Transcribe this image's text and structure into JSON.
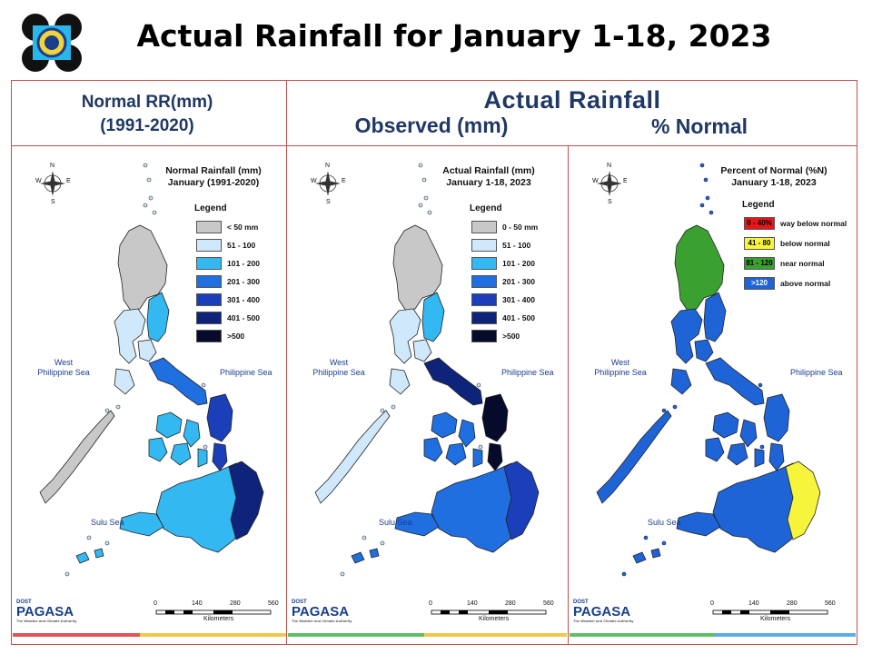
{
  "page_title": "Actual Rainfall for January 1-18, 2023",
  "header": {
    "normal_line1": "Normal RR(mm)",
    "normal_line2": "(1991-2020)",
    "actual": "Actual Rainfall",
    "observed": "Observed (mm)",
    "percent_normal": "% Normal"
  },
  "panels": [
    {
      "title_line1": "Normal Rainfall (mm)",
      "title_line2": "January (1991-2020)",
      "legend_title": "Legend",
      "legend": [
        {
          "label": "< 50 mm",
          "color": "#c8c8c8"
        },
        {
          "label": "51 - 100",
          "color": "#cfe8fb"
        },
        {
          "label": "101 - 200",
          "color": "#33b8f2"
        },
        {
          "label": "201 - 300",
          "color": "#1f6fe0"
        },
        {
          "label": "301 - 400",
          "color": "#1b3fb8"
        },
        {
          "label": "401 - 500",
          "color": "#0e237a"
        },
        {
          "label": ">500",
          "color": "#060b2b"
        }
      ]
    },
    {
      "title_line1": "Actual Rainfall (mm)",
      "title_line2": "January 1-18, 2023",
      "legend_title": "Legend",
      "legend": [
        {
          "label": "0 - 50 mm",
          "color": "#c8c8c8"
        },
        {
          "label": "51 - 100",
          "color": "#cfe8fb"
        },
        {
          "label": "101 - 200",
          "color": "#33b8f2"
        },
        {
          "label": "201 - 300",
          "color": "#1f6fe0"
        },
        {
          "label": "301 - 400",
          "color": "#1b3fb8"
        },
        {
          "label": "401 - 500",
          "color": "#0e237a"
        },
        {
          "label": ">500",
          "color": "#060b2b"
        }
      ]
    },
    {
      "title_line1": "Percent of Normal (%N)",
      "title_line2": "January 1-18, 2023",
      "legend_title": "Legend",
      "legend": [
        {
          "swatch": "0 - 40%",
          "label": "way below normal",
          "color": "#e8161b"
        },
        {
          "swatch": "41 - 80",
          "label": "below normal",
          "color": "#f7f53b"
        },
        {
          "swatch": "81 - 120",
          "label": "near normal",
          "color": "#3aa130"
        },
        {
          "swatch": ">120",
          "label": "above normal",
          "color": "#1e64d6"
        }
      ]
    }
  ],
  "sea_labels": {
    "west": [
      "West",
      "Philippine Sea"
    ],
    "east": "Philippine Sea",
    "sulu": "Sulu Sea"
  },
  "scale_bar": {
    "ticks": [
      "0",
      "140",
      "280",
      "560"
    ],
    "unit": "Kilometers"
  },
  "compass": {
    "n": "N",
    "s": "S",
    "e": "E",
    "w": "W"
  },
  "footer_logo": {
    "top": "DOST",
    "mid": "PAGASA",
    "sub": "The Weather and Climate Authority"
  },
  "region_colors": {
    "normal": {
      "north_luzon": "#c8c8c8",
      "luzon_west": "#cfe8fb",
      "luzon_east": "#33b8f2",
      "bicol": "#1f6fe0",
      "samar": "#1b3fb8",
      "visayas": "#33b8f2",
      "palawan": "#c8c8c8",
      "mindanao_east": "#0e237a",
      "mindanao": "#33b8f2"
    },
    "actual": {
      "north_luzon": "#c8c8c8",
      "luzon_west": "#cfe8fb",
      "luzon_east": "#33b8f2",
      "bicol": "#0e237a",
      "samar": "#060b2b",
      "visayas": "#1f6fe0",
      "palawan": "#cfe8fb",
      "mindanao_east": "#1b3fb8",
      "mindanao": "#1f6fe0"
    },
    "percent": {
      "north_luzon": "#3aa130",
      "luzon_west": "#1e64d6",
      "luzon_east": "#1e64d6",
      "bicol": "#1e64d6",
      "samar": "#1e64d6",
      "visayas": "#1e64d6",
      "palawan": "#1e64d6",
      "mindanao_east": "#f7f53b",
      "mindanao": "#1e64d6"
    }
  }
}
